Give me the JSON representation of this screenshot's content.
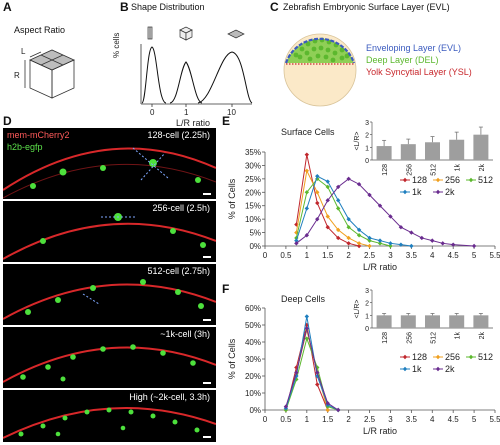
{
  "panels": {
    "A": {
      "letter": "A",
      "title": "Aspect Ratio",
      "dim_l": "L",
      "dim_r": "R"
    },
    "B": {
      "letter": "B",
      "title": "Shape Distribution",
      "ylabel": "% cells",
      "xlabel": "L/R ratio",
      "ticks": [
        "0",
        "1",
        "10"
      ]
    },
    "C": {
      "letter": "C",
      "title": "Zebrafish Embryonic Surface Layer (EVL)",
      "legend": [
        {
          "label": "Enveloping Layer (EVL)",
          "color": "#3b5bbf"
        },
        {
          "label": "Deep Layer (DEL)",
          "color": "#5cb82e"
        },
        {
          "label": "Yolk Syncytial Layer (YSL)",
          "color": "#c8282d"
        }
      ]
    },
    "D": {
      "letter": "D",
      "stain1": "mem-mCherry2",
      "stain2": "h2b-egfp",
      "frames": [
        "128-cell (2.25h)",
        "256-cell (2.5h)",
        "512-cell (2.75h)",
        "~1k-cell (3h)",
        "High (~2k-cell, 3.3h)"
      ]
    },
    "E": {
      "letter": "E"
    },
    "F": {
      "letter": "F"
    }
  },
  "chart_data": [
    {
      "id": "E",
      "type": "line",
      "title": "Surface Cells",
      "xlabel": "L/R ratio",
      "ylabel": "% of Cells",
      "xlim": [
        0,
        5.5
      ],
      "ylim": [
        0,
        35
      ],
      "xticks": [
        0,
        0.5,
        1,
        1.5,
        2,
        2.5,
        3,
        3.5,
        4,
        4.5,
        5,
        5.5
      ],
      "yticks": [
        0,
        5,
        10,
        15,
        20,
        25,
        30,
        35
      ],
      "ytick_suffix": "%",
      "legend_position": "right",
      "series": [
        {
          "name": "128",
          "color": "#c0272d",
          "marker": "diamond",
          "x": [
            0.75,
            1.0,
            1.25,
            1.5,
            1.75,
            2.0,
            2.25
          ],
          "y": [
            8,
            34,
            16,
            7,
            3,
            1,
            0
          ]
        },
        {
          "name": "256",
          "color": "#f0a020",
          "marker": "diamond",
          "x": [
            0.75,
            1.0,
            1.25,
            1.5,
            1.75,
            2.0,
            2.25,
            2.5
          ],
          "y": [
            5,
            28,
            20,
            11,
            6,
            3,
            1,
            0
          ]
        },
        {
          "name": "512",
          "color": "#5cb82e",
          "marker": "diamond",
          "x": [
            0.75,
            1.0,
            1.25,
            1.5,
            1.75,
            2.0,
            2.25,
            2.5,
            2.75,
            3.0
          ],
          "y": [
            3,
            20,
            25,
            22,
            14,
            7,
            4,
            2,
            1,
            0
          ]
        },
        {
          "name": "1k",
          "color": "#1f7fbf",
          "marker": "diamond",
          "x": [
            0.75,
            1.0,
            1.25,
            1.5,
            1.75,
            2.0,
            2.25,
            2.5,
            2.75,
            3.0,
            3.25,
            3.5
          ],
          "y": [
            2,
            14,
            26,
            24,
            17,
            10,
            6,
            3,
            2,
            1,
            0.5,
            0
          ]
        },
        {
          "name": "2k",
          "color": "#6a2c8f",
          "marker": "diamond",
          "x": [
            0.75,
            1.0,
            1.25,
            1.5,
            1.75,
            2.0,
            2.25,
            2.5,
            2.75,
            3.0,
            3.25,
            3.5,
            3.75,
            4.0,
            4.25,
            4.5,
            5.0
          ],
          "y": [
            1,
            4,
            10,
            17,
            22,
            25,
            23,
            19,
            15,
            11,
            7,
            5,
            3,
            2,
            1,
            0.5,
            0
          ]
        }
      ],
      "inset": {
        "type": "bar",
        "ylabel": "<L/R>",
        "ylim": [
          0,
          3
        ],
        "yticks": [
          0,
          1,
          2,
          3
        ],
        "categories": [
          "128",
          "256",
          "512",
          "1k",
          "2k"
        ],
        "values": [
          1.1,
          1.25,
          1.4,
          1.6,
          2.0
        ],
        "errors": [
          0.45,
          0.4,
          0.45,
          0.6,
          0.6
        ],
        "color": "#9e9e9e"
      }
    },
    {
      "id": "F",
      "type": "line",
      "title": "Deep Cells",
      "xlabel": "L/R ratio",
      "ylabel": "% of Cells",
      "xlim": [
        0,
        5.5
      ],
      "ylim": [
        0,
        60
      ],
      "xticks": [
        0,
        0.5,
        1,
        1.5,
        2,
        2.5,
        3,
        3.5,
        4,
        4.5,
        5,
        5.5
      ],
      "yticks": [
        0,
        10,
        20,
        30,
        40,
        50,
        60
      ],
      "ytick_suffix": "%",
      "legend_position": "right",
      "series": [
        {
          "name": "128",
          "color": "#c0272d",
          "marker": "diamond",
          "x": [
            0.5,
            0.75,
            1.0,
            1.25,
            1.5
          ],
          "y": [
            0,
            25,
            50,
            15,
            0
          ]
        },
        {
          "name": "256",
          "color": "#f0a020",
          "marker": "diamond",
          "x": [
            0.5,
            0.75,
            1.0,
            1.25,
            1.5
          ],
          "y": [
            0,
            22,
            47,
            22,
            0
          ]
        },
        {
          "name": "512",
          "color": "#5cb82e",
          "marker": "diamond",
          "x": [
            0.5,
            0.75,
            1.0,
            1.25,
            1.5,
            1.75
          ],
          "y": [
            0,
            18,
            42,
            25,
            2,
            0
          ]
        },
        {
          "name": "1k",
          "color": "#1f7fbf",
          "marker": "diamond",
          "x": [
            0.5,
            0.75,
            1.0,
            1.25,
            1.5,
            1.75
          ],
          "y": [
            1,
            20,
            55,
            20,
            3,
            0
          ]
        },
        {
          "name": "2k",
          "color": "#6a2c8f",
          "marker": "diamond",
          "x": [
            0.5,
            0.75,
            1.0,
            1.25,
            1.5,
            1.75
          ],
          "y": [
            2,
            22,
            48,
            22,
            4,
            0
          ]
        }
      ],
      "inset": {
        "type": "bar",
        "ylabel": "<L/R>",
        "ylim": [
          0,
          3
        ],
        "yticks": [
          0,
          1,
          2,
          3
        ],
        "categories": [
          "128",
          "256",
          "512",
          "1k",
          "2k"
        ],
        "values": [
          1.0,
          1.0,
          1.0,
          1.0,
          1.0
        ],
        "errors": [
          0.15,
          0.15,
          0.15,
          0.15,
          0.15
        ],
        "color": "#9e9e9e"
      }
    }
  ]
}
